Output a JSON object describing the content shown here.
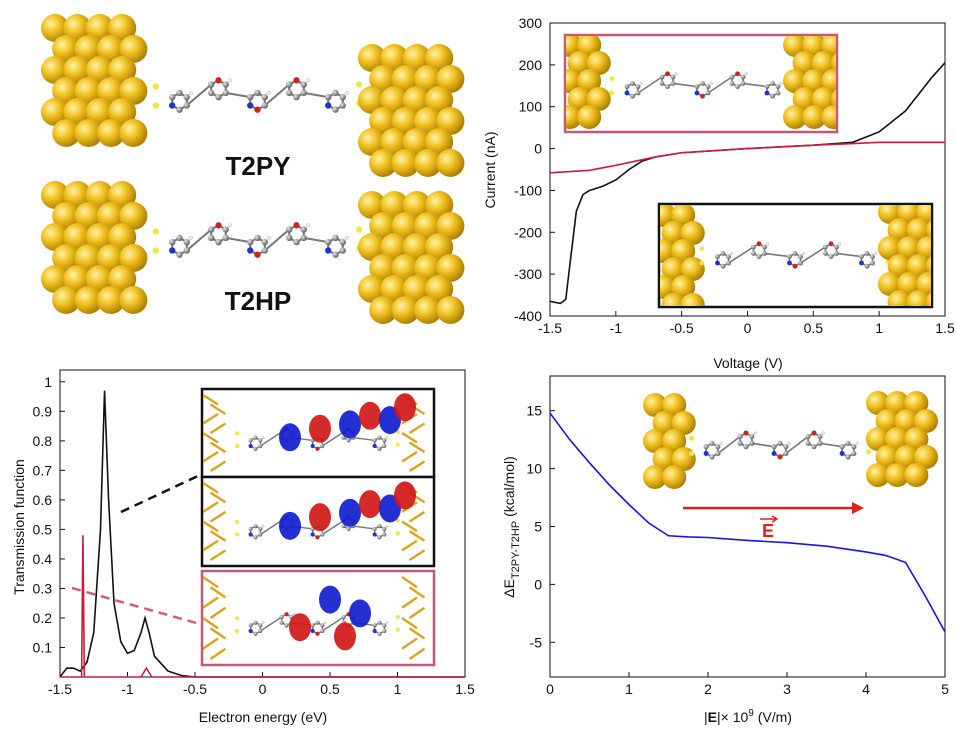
{
  "labels": [
    "T2PY",
    "T2HP"
  ],
  "chart_data": [
    {
      "type": "line",
      "x_label": "Voltage (V)",
      "y_label": "Current (nA)",
      "xlim": [
        -1.5,
        1.5
      ],
      "ylim": [
        -400,
        300
      ],
      "xticks": [
        -1.5,
        -1,
        -0.5,
        0,
        0.5,
        1,
        1.5
      ],
      "yticks": [
        -400,
        -300,
        -200,
        -100,
        0,
        100,
        200,
        300
      ],
      "series": [
        {
          "color": "#111111",
          "x": [
            -1.5,
            -1.42,
            -1.38,
            -1.35,
            -1.3,
            -1.25,
            -1.2,
            -1.1,
            -1.0,
            -0.9,
            -0.8,
            -0.7,
            -0.5,
            0,
            0.5,
            0.8,
            1.0,
            1.2,
            1.4,
            1.5
          ],
          "values": [
            -365,
            -370,
            -360,
            -280,
            -150,
            -110,
            -100,
            -90,
            -75,
            -50,
            -30,
            -20,
            -10,
            0,
            8,
            15,
            40,
            90,
            170,
            205
          ]
        },
        {
          "color": "#cc1a3e",
          "x": [
            -1.5,
            -1.2,
            -1.0,
            -0.7,
            -0.5,
            0,
            0.5,
            0.8,
            1.0,
            1.5
          ],
          "values": [
            -58,
            -52,
            -40,
            -20,
            -10,
            0,
            8,
            12,
            15,
            15
          ]
        }
      ]
    },
    {
      "type": "line",
      "x_label": "Electron energy (eV)",
      "y_label": "Transmission function",
      "xlim": [
        -1.5,
        1.5
      ],
      "ylim": [
        0,
        1.04
      ],
      "xticks": [
        -1.5,
        -1,
        -0.5,
        0,
        0.5,
        1,
        1.5
      ],
      "yticks": [
        0.1,
        0.2,
        0.3,
        0.4,
        0.5,
        0.6,
        0.7,
        0.8,
        0.9,
        1
      ],
      "series": [
        {
          "color": "#111111",
          "x": [
            -1.5,
            -1.45,
            -1.4,
            -1.35,
            -1.3,
            -1.25,
            -1.2,
            -1.17,
            -1.14,
            -1.1,
            -1.05,
            -1.0,
            -0.95,
            -0.9,
            -0.87,
            -0.84,
            -0.8,
            -0.7,
            -0.6,
            -0.5,
            1.5
          ],
          "values": [
            0,
            0.03,
            0.03,
            0.02,
            0.05,
            0.15,
            0.5,
            0.97,
            0.6,
            0.25,
            0.12,
            0.08,
            0.09,
            0.15,
            0.2,
            0.15,
            0.07,
            0.02,
            0.005,
            0,
            0
          ]
        },
        {
          "color": "#cc1a3e",
          "x": [
            -1.5,
            -1.34,
            -1.33,
            -1.32,
            -0.9,
            -0.86,
            -0.82,
            1.5
          ],
          "values": [
            0,
            0,
            0.48,
            0,
            0,
            0.03,
            0,
            0
          ]
        }
      ]
    },
    {
      "type": "line",
      "x_label": [
        "|",
        "E",
        "|× 10",
        "9",
        " (V/m)"
      ],
      "y_label": [
        "ΔE",
        "T2PY-T2HP",
        " (kcal/mol)"
      ],
      "annotation": "E",
      "xlim": [
        0,
        5
      ],
      "ylim": [
        -8,
        18
      ],
      "xticks": [
        0,
        1,
        2,
        3,
        4,
        5
      ],
      "yticks": [
        -5,
        0,
        5,
        10,
        15
      ],
      "series": [
        {
          "color": "#1414e6",
          "x": [
            0,
            0.25,
            0.5,
            0.75,
            1,
            1.25,
            1.5,
            1.75,
            2,
            2.5,
            3,
            3.5,
            4,
            4.25,
            4.5,
            4.75,
            5
          ],
          "values": [
            14.8,
            12.5,
            10.5,
            8.6,
            6.9,
            5.3,
            4.2,
            4.1,
            4.05,
            3.8,
            3.6,
            3.3,
            2.8,
            2.5,
            1.9,
            -1,
            -4.1
          ]
        }
      ]
    }
  ]
}
